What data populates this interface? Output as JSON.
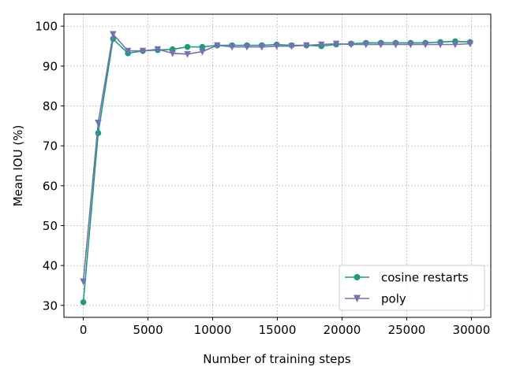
{
  "chart_data": {
    "type": "line",
    "title": "",
    "xlabel": "Number of training steps",
    "ylabel": "Mean IOU (%)",
    "xlim": [
      -1500,
      31500
    ],
    "ylim": [
      27,
      103
    ],
    "xticks": [
      0,
      5000,
      10000,
      15000,
      20000,
      25000,
      30000
    ],
    "yticks": [
      30,
      40,
      50,
      60,
      70,
      80,
      90,
      100
    ],
    "grid": true,
    "legend_position": "lower-right",
    "series": [
      {
        "name": "cosine restarts",
        "color": "#1b9e77",
        "marker": "circle",
        "x": [
          0,
          1150,
          2300,
          3450,
          4600,
          5750,
          6900,
          8050,
          9200,
          10350,
          11500,
          12650,
          13800,
          14950,
          16100,
          17250,
          18400,
          19550,
          20700,
          21850,
          23000,
          24150,
          25300,
          26450,
          27600,
          28750,
          29900
        ],
        "y": [
          30.8,
          73.2,
          96.8,
          93.2,
          93.8,
          94.0,
          94.2,
          94.8,
          94.8,
          95.2,
          95.2,
          95.2,
          95.2,
          95.4,
          95.2,
          95.2,
          95.0,
          95.4,
          95.6,
          95.8,
          95.8,
          95.8,
          95.8,
          95.8,
          96.0,
          96.2,
          96.0
        ]
      },
      {
        "name": "poly",
        "color": "#7570b3",
        "marker": "triangle-down",
        "x": [
          0,
          1150,
          2300,
          3450,
          4600,
          5750,
          6900,
          8050,
          9200,
          10350,
          11500,
          12650,
          13800,
          14950,
          16100,
          17250,
          18400,
          19550,
          20700,
          21850,
          23000,
          24150,
          25300,
          26450,
          27600,
          28750,
          29900
        ],
        "y": [
          36.0,
          75.8,
          98.0,
          93.8,
          93.8,
          94.2,
          93.2,
          93.0,
          93.6,
          95.2,
          94.8,
          94.8,
          94.8,
          95.0,
          95.0,
          95.2,
          95.4,
          95.6,
          95.4,
          95.4,
          95.4,
          95.4,
          95.4,
          95.4,
          95.4,
          95.4,
          95.6
        ]
      }
    ]
  }
}
